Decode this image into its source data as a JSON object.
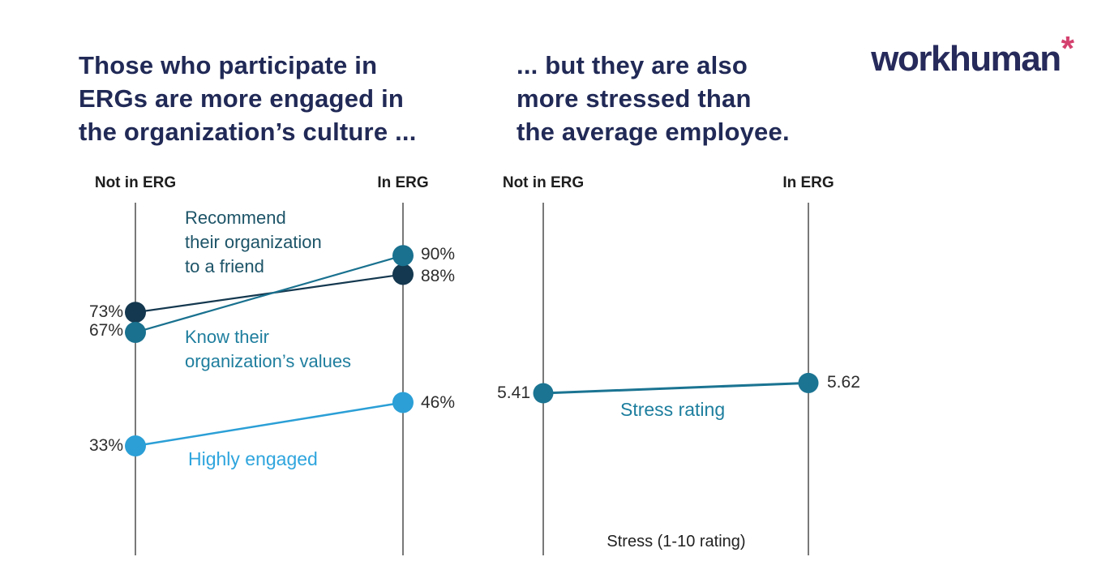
{
  "header": {
    "left_title_lines": [
      "Those who participate in",
      "ERGs are more engaged in",
      "the organization’s culture ..."
    ],
    "right_title_lines": [
      "... but they are also",
      "more stressed than",
      "the average employee."
    ],
    "logo_text": "workhuman",
    "logo_asterisk": "*",
    "colors": {
      "title_navy": "#212A56",
      "logo_asterisk_pink": "#D4416F",
      "axis_gray": "#4D4D4D"
    }
  },
  "chart_data": [
    {
      "type": "line",
      "subtype": "slope-chart",
      "columns": [
        "Not in ERG",
        "In ERG"
      ],
      "x": [
        "Not in ERG",
        "In ERG"
      ],
      "series": [
        {
          "name": "Recommend their organization to a friend",
          "label_lines": [
            "Recommend",
            "their organization",
            "to a friend"
          ],
          "values": [
            73,
            88
          ],
          "value_labels": [
            "73%",
            "88%"
          ],
          "color": "#14384F",
          "label_color": "#1D5468"
        },
        {
          "name": "Know their organization’s values",
          "label_lines": [
            "Know their",
            "organization’s values"
          ],
          "values": [
            67,
            90
          ],
          "value_labels": [
            "67%",
            "90%"
          ],
          "color": "#19718F",
          "label_color": "#1F7E9E"
        },
        {
          "name": "Highly engaged",
          "label_lines": [
            "Highly engaged"
          ],
          "values": [
            33,
            46
          ],
          "value_labels": [
            "33%",
            "46%"
          ],
          "color": "#2B9FD6",
          "label_color": "#2FA5DD"
        }
      ],
      "unit": "percent",
      "ylim": [
        0,
        100
      ],
      "grid": false,
      "legend": "inline-annotations"
    },
    {
      "type": "line",
      "subtype": "slope-chart",
      "columns": [
        "Not in ERG",
        "In ERG"
      ],
      "x": [
        "Not in ERG",
        "In ERG"
      ],
      "series": [
        {
          "name": "Stress rating",
          "label_lines": [
            "Stress rating"
          ],
          "values": [
            5.41,
            5.62
          ],
          "value_labels": [
            "5.41",
            "5.62"
          ],
          "color": "#1B7492",
          "label_color": "#1D7E9E"
        }
      ],
      "unit": "rating",
      "footnote": "Stress (1-10 rating)",
      "ylim": [
        1,
        10
      ],
      "grid": false,
      "legend": "inline-annotations"
    }
  ]
}
